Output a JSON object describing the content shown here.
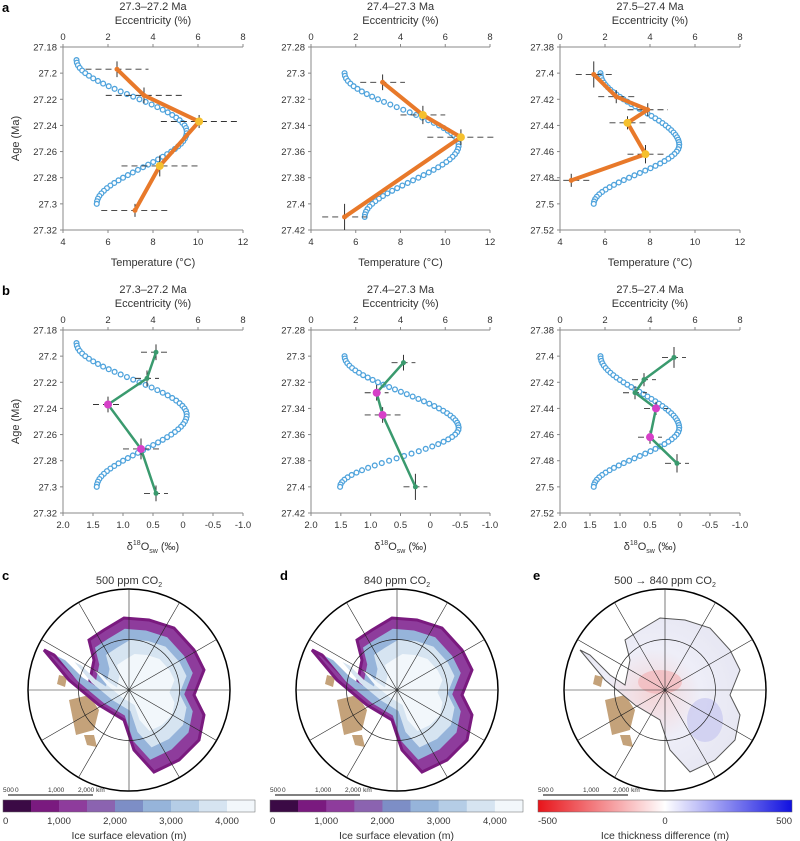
{
  "panel_labels": {
    "a": "a",
    "b": "b",
    "c": "c",
    "d": "d",
    "e": "e"
  },
  "chart_data": [
    {
      "id": "a1",
      "type": "line",
      "panel": "a",
      "title": "27.3–27.2 Ma",
      "top_xlabel": "Eccentricity (%)",
      "xlabel": "Temperature (°C)",
      "ylabel": "Age (Ma)",
      "xlim": [
        4,
        12
      ],
      "xticks": [
        "4",
        "6",
        "8",
        "10",
        "12"
      ],
      "top_xlim": [
        0,
        8
      ],
      "top_xticks": [
        "0",
        "2",
        "4",
        "6",
        "8"
      ],
      "ylim": [
        27.18,
        27.32
      ],
      "yticks": [
        "27.18",
        "27.2",
        "27.22",
        "27.24",
        "27.26",
        "27.28",
        "27.3",
        "27.32"
      ],
      "series": [
        {
          "x": [
            6.4,
            7.6,
            10.05,
            8.3,
            7.2
          ],
          "y": [
            27.197,
            27.217,
            27.237,
            27.271,
            27.305
          ],
          "xerr": [
            1.4,
            1.7,
            1.7,
            1.7,
            1.5
          ],
          "yerr": [
            0.006,
            0.006,
            0.005,
            0.008,
            0.005
          ],
          "highlight": [
            false,
            false,
            true,
            true,
            false
          ]
        }
      ],
      "eccentricity": {
        "y": [
          27.19,
          27.3
        ],
        "min_start": 0.6,
        "max": 5.5,
        "max_age": 27.245,
        "end": 1.5
      }
    },
    {
      "id": "a2",
      "type": "line",
      "panel": "a",
      "title": "27.4–27.3 Ma",
      "top_xlabel": "Eccentricity (%)",
      "xlabel": "Temperature (°C)",
      "ylabel": "",
      "xlim": [
        4,
        12
      ],
      "xticks": [
        "4",
        "6",
        "8",
        "10",
        "12"
      ],
      "top_xlim": [
        0,
        8
      ],
      "top_xticks": [
        "0",
        "2",
        "4",
        "6",
        "8"
      ],
      "ylim": [
        27.28,
        27.42
      ],
      "yticks": [
        "27.28",
        "27.3",
        "27.32",
        "27.34",
        "27.36",
        "27.38",
        "27.4",
        "27.42"
      ],
      "series": [
        {
          "x": [
            7.2,
            9.0,
            10.7,
            5.5
          ],
          "y": [
            27.307,
            27.332,
            27.349,
            27.41
          ],
          "xerr": [
            1.0,
            1.0,
            1.5,
            1.0
          ],
          "yerr": [
            0.006,
            0.007,
            0.006,
            0.01
          ],
          "highlight": [
            false,
            true,
            true,
            false
          ]
        }
      ],
      "eccentricity": {
        "y": [
          27.3,
          27.41
        ],
        "min_start": 1.5,
        "max": 6.6,
        "max_age": 27.355,
        "end": 2.4
      }
    },
    {
      "id": "a3",
      "type": "line",
      "panel": "a",
      "title": "27.5–27.4 Ma",
      "top_xlabel": "Eccentricity (%)",
      "xlabel": "Temperature (°C)",
      "ylabel": "",
      "xlim": [
        4,
        12
      ],
      "xticks": [
        "4",
        "6",
        "8",
        "10",
        "12"
      ],
      "top_xlim": [
        0,
        8
      ],
      "top_xticks": [
        "0",
        "2",
        "4",
        "6",
        "8"
      ],
      "ylim": [
        27.38,
        27.52
      ],
      "yticks": [
        "27.38",
        "27.4",
        "27.42",
        "27.44",
        "27.46",
        "27.48",
        "27.5",
        "27.52"
      ],
      "series": [
        {
          "x": [
            5.5,
            6.5,
            7.9,
            7.0,
            7.8,
            4.5
          ],
          "y": [
            27.401,
            27.418,
            27.428,
            27.438,
            27.462,
            27.482
          ],
          "xerr": [
            0.8,
            0.8,
            0.9,
            0.8,
            0.8,
            0.8
          ],
          "yerr": [
            0.01,
            0.005,
            0.005,
            0.005,
            0.007,
            0.005
          ],
          "highlight": [
            false,
            false,
            false,
            true,
            true,
            false
          ]
        }
      ],
      "eccentricity": {
        "y": [
          27.4,
          27.5
        ],
        "min_start": 1.8,
        "max": 5.3,
        "max_age": 27.455,
        "end": 1.5
      }
    },
    {
      "id": "b1",
      "type": "line",
      "panel": "b",
      "title": "27.3–27.2 Ma",
      "top_xlabel": "Eccentricity (%)",
      "xlabel": "δ18Osw (‰)",
      "ylabel": "Age (Ma)",
      "xlim": [
        2.0,
        -1.0
      ],
      "xticks": [
        "2.0",
        "1.5",
        "1.0",
        "0.5",
        "0",
        "-0.5",
        "-1.0"
      ],
      "top_xlim": [
        0,
        8
      ],
      "top_xticks": [
        "0",
        "2",
        "4",
        "6",
        "8"
      ],
      "ylim": [
        27.18,
        27.32
      ],
      "yticks": [
        "27.18",
        "27.2",
        "27.22",
        "27.24",
        "27.26",
        "27.28",
        "27.3",
        "27.32"
      ],
      "series": [
        {
          "x": [
            0.45,
            0.6,
            1.25,
            0.7,
            0.45
          ],
          "y": [
            27.197,
            27.217,
            27.237,
            27.271,
            27.305
          ],
          "xerr": [
            0.25,
            0.2,
            0.25,
            0.3,
            0.2
          ],
          "yerr": [
            0.006,
            0.006,
            0.006,
            0.008,
            0.006
          ],
          "highlight": [
            false,
            false,
            true,
            true,
            false
          ]
        }
      ],
      "eccentricity": {
        "y": [
          27.19,
          27.3
        ],
        "min_start": 0.6,
        "max": 5.5,
        "max_age": 27.245,
        "end": 1.5
      }
    },
    {
      "id": "b2",
      "type": "line",
      "panel": "b",
      "title": "27.4–27.3 Ma",
      "top_xlabel": "Eccentricity (%)",
      "xlabel": "δ18Osw (‰)",
      "ylabel": "",
      "xlim": [
        2.0,
        -1.0
      ],
      "xticks": [
        "2.0",
        "1.5",
        "1.0",
        "0.5",
        "0",
        "-0.5",
        "-1.0"
      ],
      "top_xlim": [
        0,
        8
      ],
      "top_xticks": [
        "0",
        "2",
        "4",
        "6",
        "8"
      ],
      "ylim": [
        27.28,
        27.42
      ],
      "yticks": [
        "27.28",
        "27.3",
        "27.32",
        "27.34",
        "27.36",
        "27.38",
        "27.4",
        "27.42"
      ],
      "series": [
        {
          "x": [
            0.45,
            0.9,
            0.8,
            0.25
          ],
          "y": [
            27.305,
            27.328,
            27.345,
            27.4
          ],
          "xerr": [
            0.2,
            0.2,
            0.3,
            0.2
          ],
          "yerr": [
            0.006,
            0.006,
            0.006,
            0.01
          ],
          "highlight": [
            false,
            true,
            true,
            false
          ]
        }
      ],
      "eccentricity": {
        "y": [
          27.3,
          27.4
        ],
        "min_start": 1.5,
        "max": 6.6,
        "max_age": 27.355,
        "end": 1.3
      }
    },
    {
      "id": "b3",
      "type": "line",
      "panel": "b",
      "title": "27.5–27.4 Ma",
      "top_xlabel": "Eccentricity (%)",
      "xlabel": "δ18Osw (‰)",
      "ylabel": "",
      "xlim": [
        2.0,
        -1.0
      ],
      "xticks": [
        "2.0",
        "1.5",
        "1.0",
        "0.5",
        "0",
        "-0.5",
        "-1.0"
      ],
      "top_xlim": [
        0,
        8
      ],
      "top_xticks": [
        "0",
        "2",
        "4",
        "6",
        "8"
      ],
      "ylim": [
        27.38,
        27.52
      ],
      "yticks": [
        "27.38",
        "27.4",
        "27.42",
        "27.44",
        "27.46",
        "27.48",
        "27.5",
        "27.52"
      ],
      "series": [
        {
          "x": [
            0.1,
            0.6,
            0.75,
            0.4,
            0.5,
            0.05
          ],
          "y": [
            27.401,
            27.418,
            27.428,
            27.44,
            27.462,
            27.482
          ],
          "xerr": [
            0.2,
            0.2,
            0.2,
            0.2,
            0.2,
            0.2
          ],
          "yerr": [
            0.008,
            0.005,
            0.005,
            0.005,
            0.005,
            0.007
          ],
          "highlight": [
            false,
            false,
            false,
            true,
            true,
            false
          ]
        }
      ],
      "eccentricity": {
        "y": [
          27.4,
          27.5
        ],
        "min_start": 1.8,
        "max": 5.3,
        "max_age": 27.455,
        "end": 1.5
      }
    }
  ],
  "colors": {
    "temperature_line": "#e8792a",
    "d18o_line": "#3a9a6e",
    "eccentricity": "#4fa3dc",
    "highlight_a": "#f5c02e",
    "highlight_b": "#d640c8",
    "land": "#c4a27a"
  },
  "maps": [
    {
      "id": "c",
      "title": "500 ppm CO",
      "title_sub": "2",
      "colorbar": {
        "type": "sequential",
        "ticks": [
          "0",
          "1,000",
          "2,000",
          "3,000",
          "4,000"
        ],
        "label": "Ice surface elevation (m)",
        "colors": [
          "#3b0a45",
          "#7a1a7f",
          "#8e3c9c",
          "#8b63b0",
          "#7d8ec6",
          "#96b4da",
          "#b5cde6",
          "#d6e4f1",
          "#f2f7fb"
        ]
      },
      "scale": [
        "500",
        "0",
        "1,000",
        "2,000 km"
      ]
    },
    {
      "id": "d",
      "title": "840 ppm CO",
      "title_sub": "2",
      "colorbar": {
        "type": "sequential",
        "ticks": [
          "0",
          "1,000",
          "2,000",
          "3,000",
          "4,000"
        ],
        "label": "Ice surface elevation (m)",
        "colors": [
          "#3b0a45",
          "#7a1a7f",
          "#8e3c9c",
          "#8b63b0",
          "#7d8ec6",
          "#96b4da",
          "#b5cde6",
          "#d6e4f1",
          "#f2f7fb"
        ]
      },
      "scale": [
        "500",
        "0",
        "1,000",
        "2,000 km"
      ]
    },
    {
      "id": "e",
      "title": "500 → 840 ppm CO",
      "title_sub": "2",
      "colorbar": {
        "type": "diverging",
        "ticks": [
          "-500",
          "0",
          "500"
        ],
        "label": "Ice thickness difference (m)",
        "colors": [
          "#e8141a",
          "#ffffff",
          "#1010e0"
        ]
      },
      "scale": [
        "500",
        "0",
        "1,000",
        "2,000 km"
      ]
    }
  ]
}
